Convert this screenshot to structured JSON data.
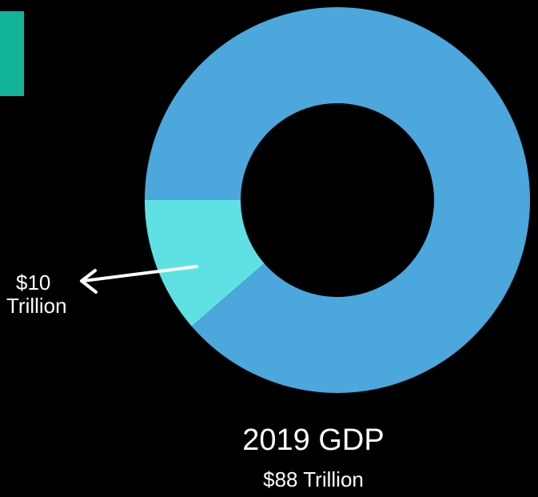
{
  "colors": {
    "background": "#000000",
    "accent": "#13b397",
    "callout_arrow": "#ffffff"
  },
  "chart_data": {
    "type": "pie",
    "style": "donut",
    "title": "2019 GDP",
    "subtitle": "$88 Trillion",
    "total": 88,
    "slices": [
      {
        "label": "$10 Trillion",
        "value": 10,
        "color": "#5fe1e4",
        "highlighted": true
      },
      {
        "label": "",
        "value": 78,
        "color": "#4ba7dc",
        "highlighted": false
      }
    ],
    "annotation": {
      "line1": "$10",
      "line2": "Trillion"
    }
  }
}
